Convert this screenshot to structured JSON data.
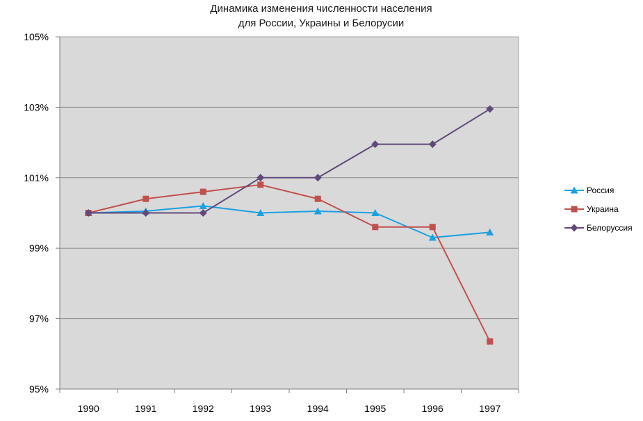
{
  "chart_data": {
    "type": "line",
    "title": "Динамика изменения  численности населения",
    "subtitle": "для России, Украины и Белорусии",
    "xlabel": "",
    "ylabel": "",
    "x": [
      "1990",
      "1991",
      "1992",
      "1993",
      "1994",
      "1995",
      "1996",
      "1997"
    ],
    "y_ticks": [
      "95%",
      "97%",
      "99%",
      "101%",
      "103%",
      "105%"
    ],
    "ylim": [
      95,
      105
    ],
    "y_unit": "%",
    "grid": true,
    "plot_background": "#d9d9d9",
    "legend_position": "right",
    "series": [
      {
        "name": "Россия",
        "color": "#1ba1e2",
        "marker": "triangle",
        "values": [
          100.0,
          100.05,
          100.2,
          100.0,
          100.05,
          100.0,
          99.3,
          99.45
        ]
      },
      {
        "name": "Украина",
        "color": "#c0504d",
        "marker": "square",
        "values": [
          100.0,
          100.4,
          100.6,
          100.8,
          100.4,
          99.6,
          99.6,
          96.35
        ]
      },
      {
        "name": "Белоруссия",
        "color": "#604a7b",
        "marker": "diamond",
        "values": [
          100.0,
          100.0,
          100.0,
          101.0,
          101.0,
          101.95,
          101.95,
          102.95
        ]
      }
    ]
  }
}
